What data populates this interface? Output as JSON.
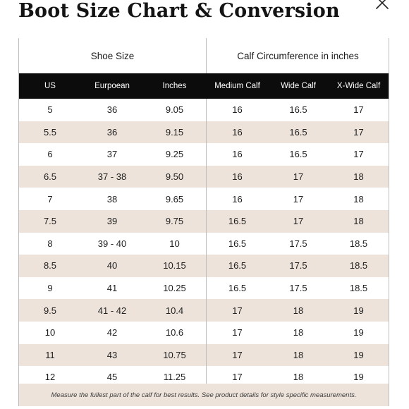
{
  "title": "Boot Size Chart & Conversion",
  "close_icon": "close-icon",
  "groups": {
    "shoe": "Shoe Size",
    "calf": "Calf Circumference in inches"
  },
  "columns": [
    "US",
    "Eurpoean",
    "Inches",
    "Medium Calf",
    "Wide Calf",
    "X-Wide Calf"
  ],
  "rows": [
    [
      "5",
      "36",
      "9.05",
      "16",
      "16.5",
      "17"
    ],
    [
      "5.5",
      "36",
      "9.15",
      "16",
      "16.5",
      "17"
    ],
    [
      "6",
      "37",
      "9.25",
      "16",
      "16.5",
      "17"
    ],
    [
      "6.5",
      "37 - 38",
      "9.50",
      "16",
      "17",
      "18"
    ],
    [
      "7",
      "38",
      "9.65",
      "16",
      "17",
      "18"
    ],
    [
      "7.5",
      "39",
      "9.75",
      "16.5",
      "17",
      "18"
    ],
    [
      "8",
      "39 - 40",
      "10",
      "16.5",
      "17.5",
      "18.5"
    ],
    [
      "8.5",
      "40",
      "10.15",
      "16.5",
      "17.5",
      "18.5"
    ],
    [
      "9",
      "41",
      "10.25",
      "16.5",
      "17.5",
      "18.5"
    ],
    [
      "9.5",
      "41 - 42",
      "10.4",
      "17",
      "18",
      "19"
    ],
    [
      "10",
      "42",
      "10.6",
      "17",
      "18",
      "19"
    ],
    [
      "11",
      "43",
      "10.75",
      "17",
      "18",
      "19"
    ],
    [
      "12",
      "45",
      "11.25",
      "17",
      "18",
      "19"
    ]
  ],
  "footer_note": "Measure the fullest part of the calf for best results. See product details for style specific measurements.",
  "colors": {
    "header_bg": "#0c0c0c",
    "alt_row_bg": "#ede3da",
    "text": "#1e1e1e"
  }
}
